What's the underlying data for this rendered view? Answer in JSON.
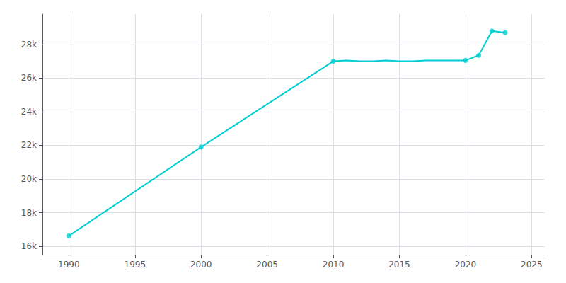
{
  "chart_data": {
    "type": "line",
    "x": [
      1990,
      2000,
      2010,
      2011,
      2012,
      2013,
      2014,
      2015,
      2016,
      2017,
      2018,
      2019,
      2020,
      2021,
      2022,
      2023
    ],
    "series": [
      {
        "type": "line",
        "color": "#00CED1",
        "values": [
          16620,
          21900,
          27000,
          27050,
          27000,
          27000,
          27050,
          27000,
          27000,
          27050,
          27050,
          27050,
          27050,
          27350,
          28800,
          28700
        ]
      },
      {
        "type": "scatter",
        "color": "#00CED1",
        "marker": "circle",
        "x": [
          1990,
          2000,
          2010,
          2020,
          2021,
          2022,
          2023
        ],
        "values": [
          16620,
          21900,
          27000,
          27050,
          27350,
          28800,
          28700
        ]
      }
    ],
    "xlim": [
      1988,
      2026
    ],
    "xticks": [
      1990,
      1995,
      2000,
      2005,
      2010,
      2015,
      2020,
      2025
    ],
    "ylim": [
      15500,
      29800
    ],
    "yticks": [
      {
        "value": 16000,
        "label": "16k"
      },
      {
        "value": 18000,
        "label": "18k"
      },
      {
        "value": 20000,
        "label": "20k"
      },
      {
        "value": 22000,
        "label": "22k"
      },
      {
        "value": 24000,
        "label": "24k"
      },
      {
        "value": 26000,
        "label": "26k"
      },
      {
        "value": 28000,
        "label": "28k"
      }
    ],
    "grid": true
  }
}
